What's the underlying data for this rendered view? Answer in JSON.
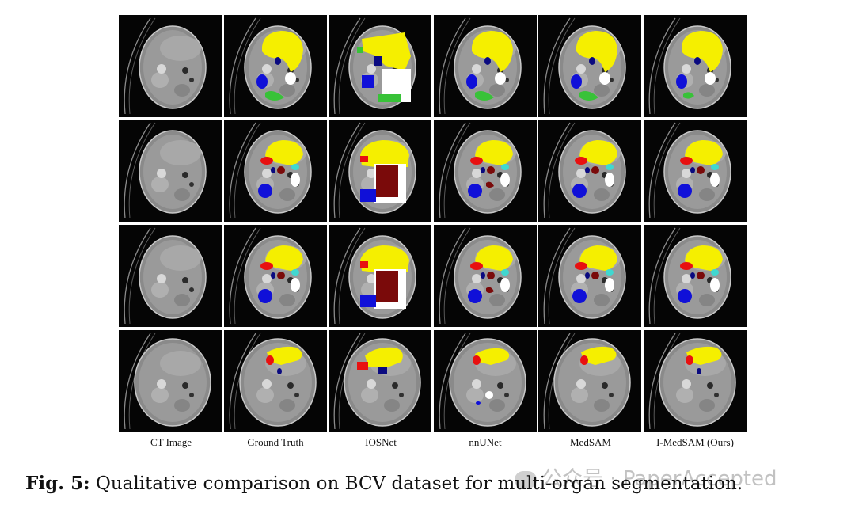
{
  "figure": {
    "columns": [
      "CT Image",
      "Ground Truth",
      "IOSNet",
      "nnUNet",
      "MedSAM",
      "I-MedSAM (Ours)"
    ],
    "caption_prefix": "Fig. 5:",
    "caption_text": "Qualitative comparison on BCV dataset for multi-organ segmentation.",
    "watermark": "公众号 · PaperAccepted"
  }
}
